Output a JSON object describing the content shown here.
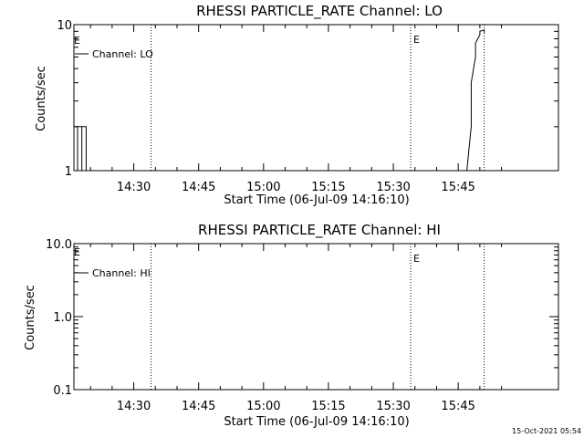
{
  "footer": {
    "timestamp": "15-Oct-2021 05:54"
  },
  "chart_data": [
    {
      "type": "line",
      "title": "RHESSI PARTICLE_RATE Channel: LO",
      "xlabel": "Start Time (06-Jul-09 14:16:10)",
      "ylabel": "Counts/sec",
      "yscale": "log",
      "ylim": [
        1,
        10
      ],
      "xlim_minutes_after_14_16_10": [
        0,
        112
      ],
      "x_tick_labels": [
        "14:30",
        "14:45",
        "15:00",
        "15:15",
        "15:30",
        "15:45"
      ],
      "x_tick_values": [
        "14:30",
        "14:45",
        "15:00",
        "15:15",
        "15:30",
        "15:45"
      ],
      "y_tick_labels": [
        "1",
        "10"
      ],
      "legend": {
        "position": "top-left",
        "entries": [
          "Channel: LO"
        ]
      },
      "vertical_markers": [
        {
          "time": "14:34",
          "label": ""
        },
        {
          "time": "15:34",
          "label": "E"
        },
        {
          "time": "15:51",
          "label": ""
        }
      ],
      "left_edge_marker_label": "E",
      "series": [
        {
          "name": "Channel: LO",
          "x": [
            "14:16",
            "14:17",
            "14:17",
            "14:17",
            "14:18",
            "14:18",
            "14:18",
            "14:19",
            "14:19",
            "14:19",
            "15:47",
            "15:48",
            "15:48",
            "15:49",
            "15:49",
            "15:50",
            "15:50",
            "15:51",
            "15:51"
          ],
          "y": [
            2,
            2,
            1,
            2,
            2,
            1,
            2,
            2,
            1,
            1,
            1,
            2,
            4,
            6,
            7.5,
            8.5,
            9,
            9.2,
            8.8
          ]
        }
      ]
    },
    {
      "type": "line",
      "title": "RHESSI PARTICLE_RATE Channel: HI",
      "xlabel": "Start Time (06-Jul-09 14:16:10)",
      "ylabel": "Counts/sec",
      "yscale": "log",
      "ylim": [
        0.1,
        10
      ],
      "xlim_minutes_after_14_16_10": [
        0,
        112
      ],
      "x_tick_labels": [
        "14:30",
        "14:45",
        "15:00",
        "15:15",
        "15:30",
        "15:45"
      ],
      "x_tick_values": [
        "14:30",
        "14:45",
        "15:00",
        "15:15",
        "15:30",
        "15:45"
      ],
      "y_tick_labels": [
        "0.1",
        "1.0",
        "10.0"
      ],
      "legend": {
        "position": "top-left",
        "entries": [
          "Channel: HI"
        ]
      },
      "vertical_markers": [
        {
          "time": "14:34",
          "label": ""
        },
        {
          "time": "15:34",
          "label": "E"
        },
        {
          "time": "15:51",
          "label": ""
        }
      ],
      "left_edge_marker_label": "E",
      "series": [
        {
          "name": "Channel: HI",
          "x": [],
          "y": []
        }
      ]
    }
  ]
}
